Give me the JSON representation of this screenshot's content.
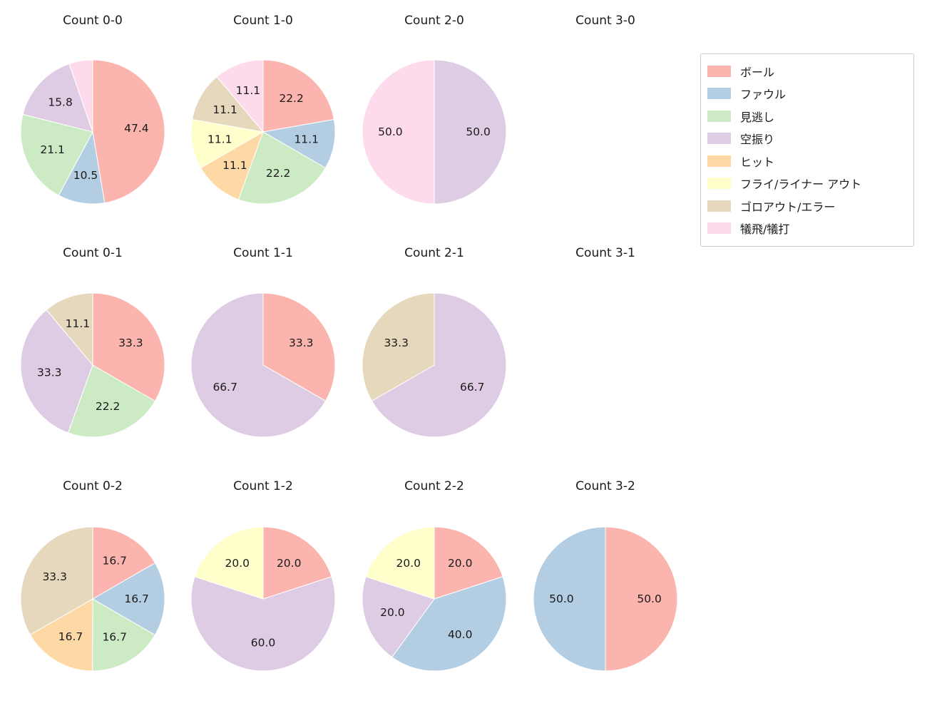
{
  "figure": {
    "background": "#ffffff",
    "text_color": "#1a1a1a"
  },
  "legend": {
    "position": "top-right",
    "items": [
      {
        "label": "ボール",
        "color": "#fbb4ae"
      },
      {
        "label": "ファウル",
        "color": "#b3cde3"
      },
      {
        "label": "見逃し",
        "color": "#ccebc5"
      },
      {
        "label": "空振り",
        "color": "#decbe4"
      },
      {
        "label": "ヒット",
        "color": "#fed9a6"
      },
      {
        "label": "フライ/ライナー アウト",
        "color": "#ffffcc"
      },
      {
        "label": "ゴロアウト/エラー",
        "color": "#e5d8bd"
      },
      {
        "label": "犠飛/犠打",
        "color": "#fddaec"
      }
    ]
  },
  "chart_data": [
    {
      "type": "pie",
      "title": "Count 0-0",
      "start_angle": "top",
      "direction": "clockwise",
      "slices": [
        {
          "label": "ボール",
          "value": 47.4,
          "pct": "47.4",
          "color": "#fbb4ae"
        },
        {
          "label": "ファウル",
          "value": 10.5,
          "pct": "10.5",
          "color": "#b3cde3"
        },
        {
          "label": "見逃し",
          "value": 21.1,
          "pct": "21.1",
          "color": "#ccebc5"
        },
        {
          "label": "空振り",
          "value": 15.8,
          "pct": "15.8",
          "color": "#decbe4"
        },
        {
          "label": "犠飛/犠打",
          "value": 5.3,
          "pct": "",
          "color": "#fddaec"
        }
      ]
    },
    {
      "type": "pie",
      "title": "Count 1-0",
      "start_angle": "top",
      "direction": "clockwise",
      "slices": [
        {
          "label": "ボール",
          "value": 22.2,
          "pct": "22.2",
          "color": "#fbb4ae"
        },
        {
          "label": "ファウル",
          "value": 11.1,
          "pct": "11.1",
          "color": "#b3cde3"
        },
        {
          "label": "見逃し",
          "value": 22.2,
          "pct": "22.2",
          "color": "#ccebc5"
        },
        {
          "label": "ヒット",
          "value": 11.1,
          "pct": "11.1",
          "color": "#fed9a6"
        },
        {
          "label": "フライ/ライナー アウト",
          "value": 11.1,
          "pct": "11.1",
          "color": "#ffffcc"
        },
        {
          "label": "ゴロアウト/エラー",
          "value": 11.1,
          "pct": "11.1",
          "color": "#e5d8bd"
        },
        {
          "label": "犠飛/犠打",
          "value": 11.1,
          "pct": "11.1",
          "color": "#fddaec"
        }
      ]
    },
    {
      "type": "pie",
      "title": "Count 2-0",
      "start_angle": "top",
      "direction": "clockwise",
      "slices": [
        {
          "label": "空振り",
          "value": 50.0,
          "pct": "50.0",
          "color": "#decbe4"
        },
        {
          "label": "犠飛/犠打",
          "value": 50.0,
          "pct": "50.0",
          "color": "#fddaec"
        }
      ]
    },
    {
      "type": "pie",
      "title": "Count 3-0",
      "start_angle": "top",
      "direction": "clockwise",
      "slices": []
    },
    {
      "type": "pie",
      "title": "Count 0-1",
      "start_angle": "top",
      "direction": "clockwise",
      "slices": [
        {
          "label": "ボール",
          "value": 33.3,
          "pct": "33.3",
          "color": "#fbb4ae"
        },
        {
          "label": "見逃し",
          "value": 22.2,
          "pct": "22.2",
          "color": "#ccebc5"
        },
        {
          "label": "空振り",
          "value": 33.3,
          "pct": "33.3",
          "color": "#decbe4"
        },
        {
          "label": "ゴロアウト/エラー",
          "value": 11.1,
          "pct": "11.1",
          "color": "#e5d8bd"
        }
      ]
    },
    {
      "type": "pie",
      "title": "Count 1-1",
      "start_angle": "top",
      "direction": "clockwise",
      "slices": [
        {
          "label": "ボール",
          "value": 33.3,
          "pct": "33.3",
          "color": "#fbb4ae"
        },
        {
          "label": "空振り",
          "value": 66.7,
          "pct": "66.7",
          "color": "#decbe4"
        }
      ]
    },
    {
      "type": "pie",
      "title": "Count 2-1",
      "start_angle": "top",
      "direction": "clockwise",
      "slices": [
        {
          "label": "空振り",
          "value": 66.7,
          "pct": "66.7",
          "color": "#decbe4"
        },
        {
          "label": "ゴロアウト/エラー",
          "value": 33.3,
          "pct": "33.3",
          "color": "#e5d8bd"
        }
      ]
    },
    {
      "type": "pie",
      "title": "Count 3-1",
      "start_angle": "top",
      "direction": "clockwise",
      "slices": []
    },
    {
      "type": "pie",
      "title": "Count 0-2",
      "start_angle": "top",
      "direction": "clockwise",
      "slices": [
        {
          "label": "ボール",
          "value": 16.7,
          "pct": "16.7",
          "color": "#fbb4ae"
        },
        {
          "label": "ファウル",
          "value": 16.7,
          "pct": "16.7",
          "color": "#b3cde3"
        },
        {
          "label": "見逃し",
          "value": 16.7,
          "pct": "16.7",
          "color": "#ccebc5"
        },
        {
          "label": "ヒット",
          "value": 16.7,
          "pct": "16.7",
          "color": "#fed9a6"
        },
        {
          "label": "ゴロアウト/エラー",
          "value": 33.3,
          "pct": "33.3",
          "color": "#e5d8bd"
        }
      ]
    },
    {
      "type": "pie",
      "title": "Count 1-2",
      "start_angle": "top",
      "direction": "clockwise",
      "slices": [
        {
          "label": "ボール",
          "value": 20.0,
          "pct": "20.0",
          "color": "#fbb4ae"
        },
        {
          "label": "空振り",
          "value": 60.0,
          "pct": "60.0",
          "color": "#decbe4"
        },
        {
          "label": "フライ/ライナー アウト",
          "value": 20.0,
          "pct": "20.0",
          "color": "#ffffcc"
        }
      ]
    },
    {
      "type": "pie",
      "title": "Count 2-2",
      "start_angle": "top",
      "direction": "clockwise",
      "slices": [
        {
          "label": "ボール",
          "value": 20.0,
          "pct": "20.0",
          "color": "#fbb4ae"
        },
        {
          "label": "ファウル",
          "value": 40.0,
          "pct": "40.0",
          "color": "#b3cde3"
        },
        {
          "label": "空振り",
          "value": 20.0,
          "pct": "20.0",
          "color": "#decbe4"
        },
        {
          "label": "フライ/ライナー アウト",
          "value": 20.0,
          "pct": "20.0",
          "color": "#ffffcc"
        }
      ]
    },
    {
      "type": "pie",
      "title": "Count 3-2",
      "start_angle": "top",
      "direction": "clockwise",
      "slices": [
        {
          "label": "ボール",
          "value": 50.0,
          "pct": "50.0",
          "color": "#fbb4ae"
        },
        {
          "label": "ファウル",
          "value": 50.0,
          "pct": "50.0",
          "color": "#b3cde3"
        }
      ]
    }
  ]
}
